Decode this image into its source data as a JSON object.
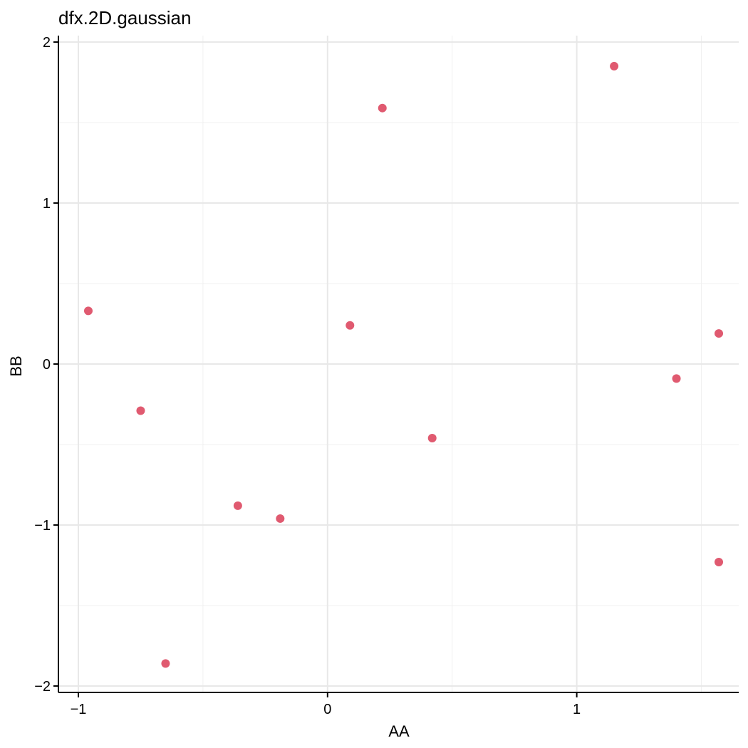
{
  "chart_data": {
    "type": "scatter",
    "title": "dfx.2D.gaussian",
    "xlabel": "AA",
    "ylabel": "BB",
    "xlim": [
      -1.08,
      1.65
    ],
    "ylim": [
      -2.04,
      2.04
    ],
    "x_ticks": [
      -1,
      0,
      1
    ],
    "x_tick_labels": [
      "−1",
      "0",
      "1"
    ],
    "y_ticks": [
      -2,
      -1,
      0,
      1,
      2
    ],
    "y_tick_labels": [
      "−2",
      "−1",
      "0",
      "1",
      "2"
    ],
    "grid": true,
    "point_color": "#e05a70",
    "series": [
      {
        "points": [
          {
            "x": -0.96,
            "y": 0.33
          },
          {
            "x": -0.75,
            "y": -0.29
          },
          {
            "x": -0.65,
            "y": -1.86
          },
          {
            "x": -0.36,
            "y": -0.88
          },
          {
            "x": -0.19,
            "y": -0.96
          },
          {
            "x": 0.09,
            "y": 0.24
          },
          {
            "x": 0.22,
            "y": 1.59
          },
          {
            "x": 0.42,
            "y": -0.46
          },
          {
            "x": 1.15,
            "y": 1.85
          },
          {
            "x": 1.4,
            "y": -0.09
          },
          {
            "x": 1.57,
            "y": -1.23
          },
          {
            "x": 1.57,
            "y": 0.19
          }
        ]
      }
    ]
  }
}
